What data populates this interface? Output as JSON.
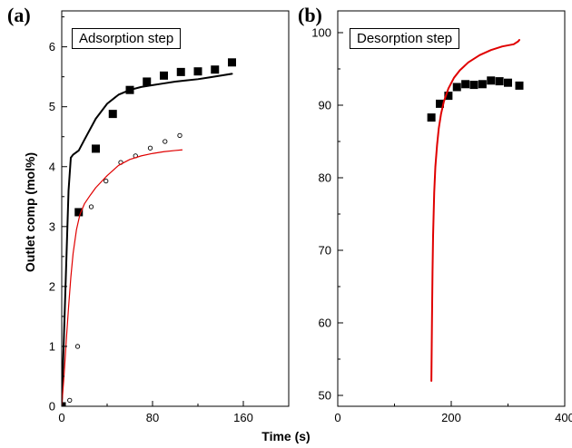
{
  "figure": {
    "xlabel": "Time (s)",
    "ylabel": "Outlet comp (mol%)"
  },
  "chart_data": [
    {
      "panel_label": "(a)",
      "title": "Adsorption step",
      "type": "scatter",
      "xlim": [
        0,
        200
      ],
      "ylim": [
        0,
        6.6
      ],
      "xticks": [
        0,
        80,
        160
      ],
      "yticks": [
        0,
        1,
        2,
        3,
        4,
        5,
        6
      ],
      "series": [
        {
          "kind": "markers",
          "marker": "square-filled",
          "color": "#000000",
          "x": [
            0,
            15,
            30,
            45,
            60,
            75,
            90,
            105,
            120,
            135,
            150
          ],
          "y": [
            0.0,
            3.24,
            4.3,
            4.88,
            5.28,
            5.42,
            5.52,
            5.58,
            5.59,
            5.62,
            5.74
          ]
        },
        {
          "kind": "markers",
          "marker": "circle-open",
          "color": "#000000",
          "x": [
            7,
            14,
            26,
            39,
            52,
            65,
            78,
            91,
            104
          ],
          "y": [
            0.1,
            1.0,
            3.33,
            3.76,
            4.07,
            4.18,
            4.31,
            4.42,
            4.52
          ]
        },
        {
          "kind": "line",
          "color": "#000000",
          "width": 2,
          "x": [
            0,
            3,
            6,
            8,
            10,
            15,
            20,
            30,
            40,
            50,
            60,
            70,
            80,
            90,
            100,
            110,
            120,
            130,
            140,
            150
          ],
          "y": [
            0.0,
            1.8,
            3.6,
            4.15,
            4.2,
            4.27,
            4.45,
            4.8,
            5.05,
            5.2,
            5.28,
            5.33,
            5.36,
            5.39,
            5.42,
            5.44,
            5.46,
            5.49,
            5.52,
            5.55
          ]
        },
        {
          "kind": "line",
          "color": "#e00000",
          "width": 1.2,
          "x": [
            0,
            2,
            4,
            6,
            8,
            10,
            13,
            16,
            20,
            25,
            30,
            40,
            50,
            60,
            70,
            80,
            90,
            100,
            106
          ],
          "y": [
            0.0,
            0.5,
            1.1,
            1.65,
            2.15,
            2.55,
            2.95,
            3.2,
            3.38,
            3.52,
            3.65,
            3.85,
            4.02,
            4.12,
            4.18,
            4.22,
            4.25,
            4.27,
            4.28
          ]
        }
      ]
    },
    {
      "panel_label": "(b)",
      "title": "Desorption step",
      "type": "scatter",
      "xlim": [
        0,
        400
      ],
      "ylim": [
        48.5,
        103
      ],
      "xticks": [
        0,
        200,
        400
      ],
      "yticks": [
        50,
        60,
        70,
        80,
        90,
        100
      ],
      "series": [
        {
          "kind": "markers",
          "marker": "square-filled",
          "color": "#000000",
          "x": [
            165,
            180,
            195,
            210,
            225,
            240,
            255,
            270,
            285,
            300,
            320
          ],
          "y": [
            88.3,
            90.2,
            91.3,
            92.5,
            92.9,
            92.8,
            92.9,
            93.4,
            93.3,
            93.1,
            92.7
          ]
        },
        {
          "kind": "line",
          "color": "#e00000",
          "width": 2,
          "x": [
            165,
            166,
            167,
            168,
            170,
            172,
            175,
            178,
            182,
            187,
            195,
            205,
            215,
            230,
            250,
            270,
            290,
            310,
            318,
            320
          ],
          "y": [
            52.0,
            60.0,
            67.0,
            72.0,
            78.0,
            81.5,
            84.5,
            86.8,
            88.8,
            90.5,
            92.3,
            93.8,
            94.8,
            95.9,
            96.9,
            97.6,
            98.1,
            98.4,
            98.8,
            99.0
          ]
        }
      ]
    }
  ]
}
